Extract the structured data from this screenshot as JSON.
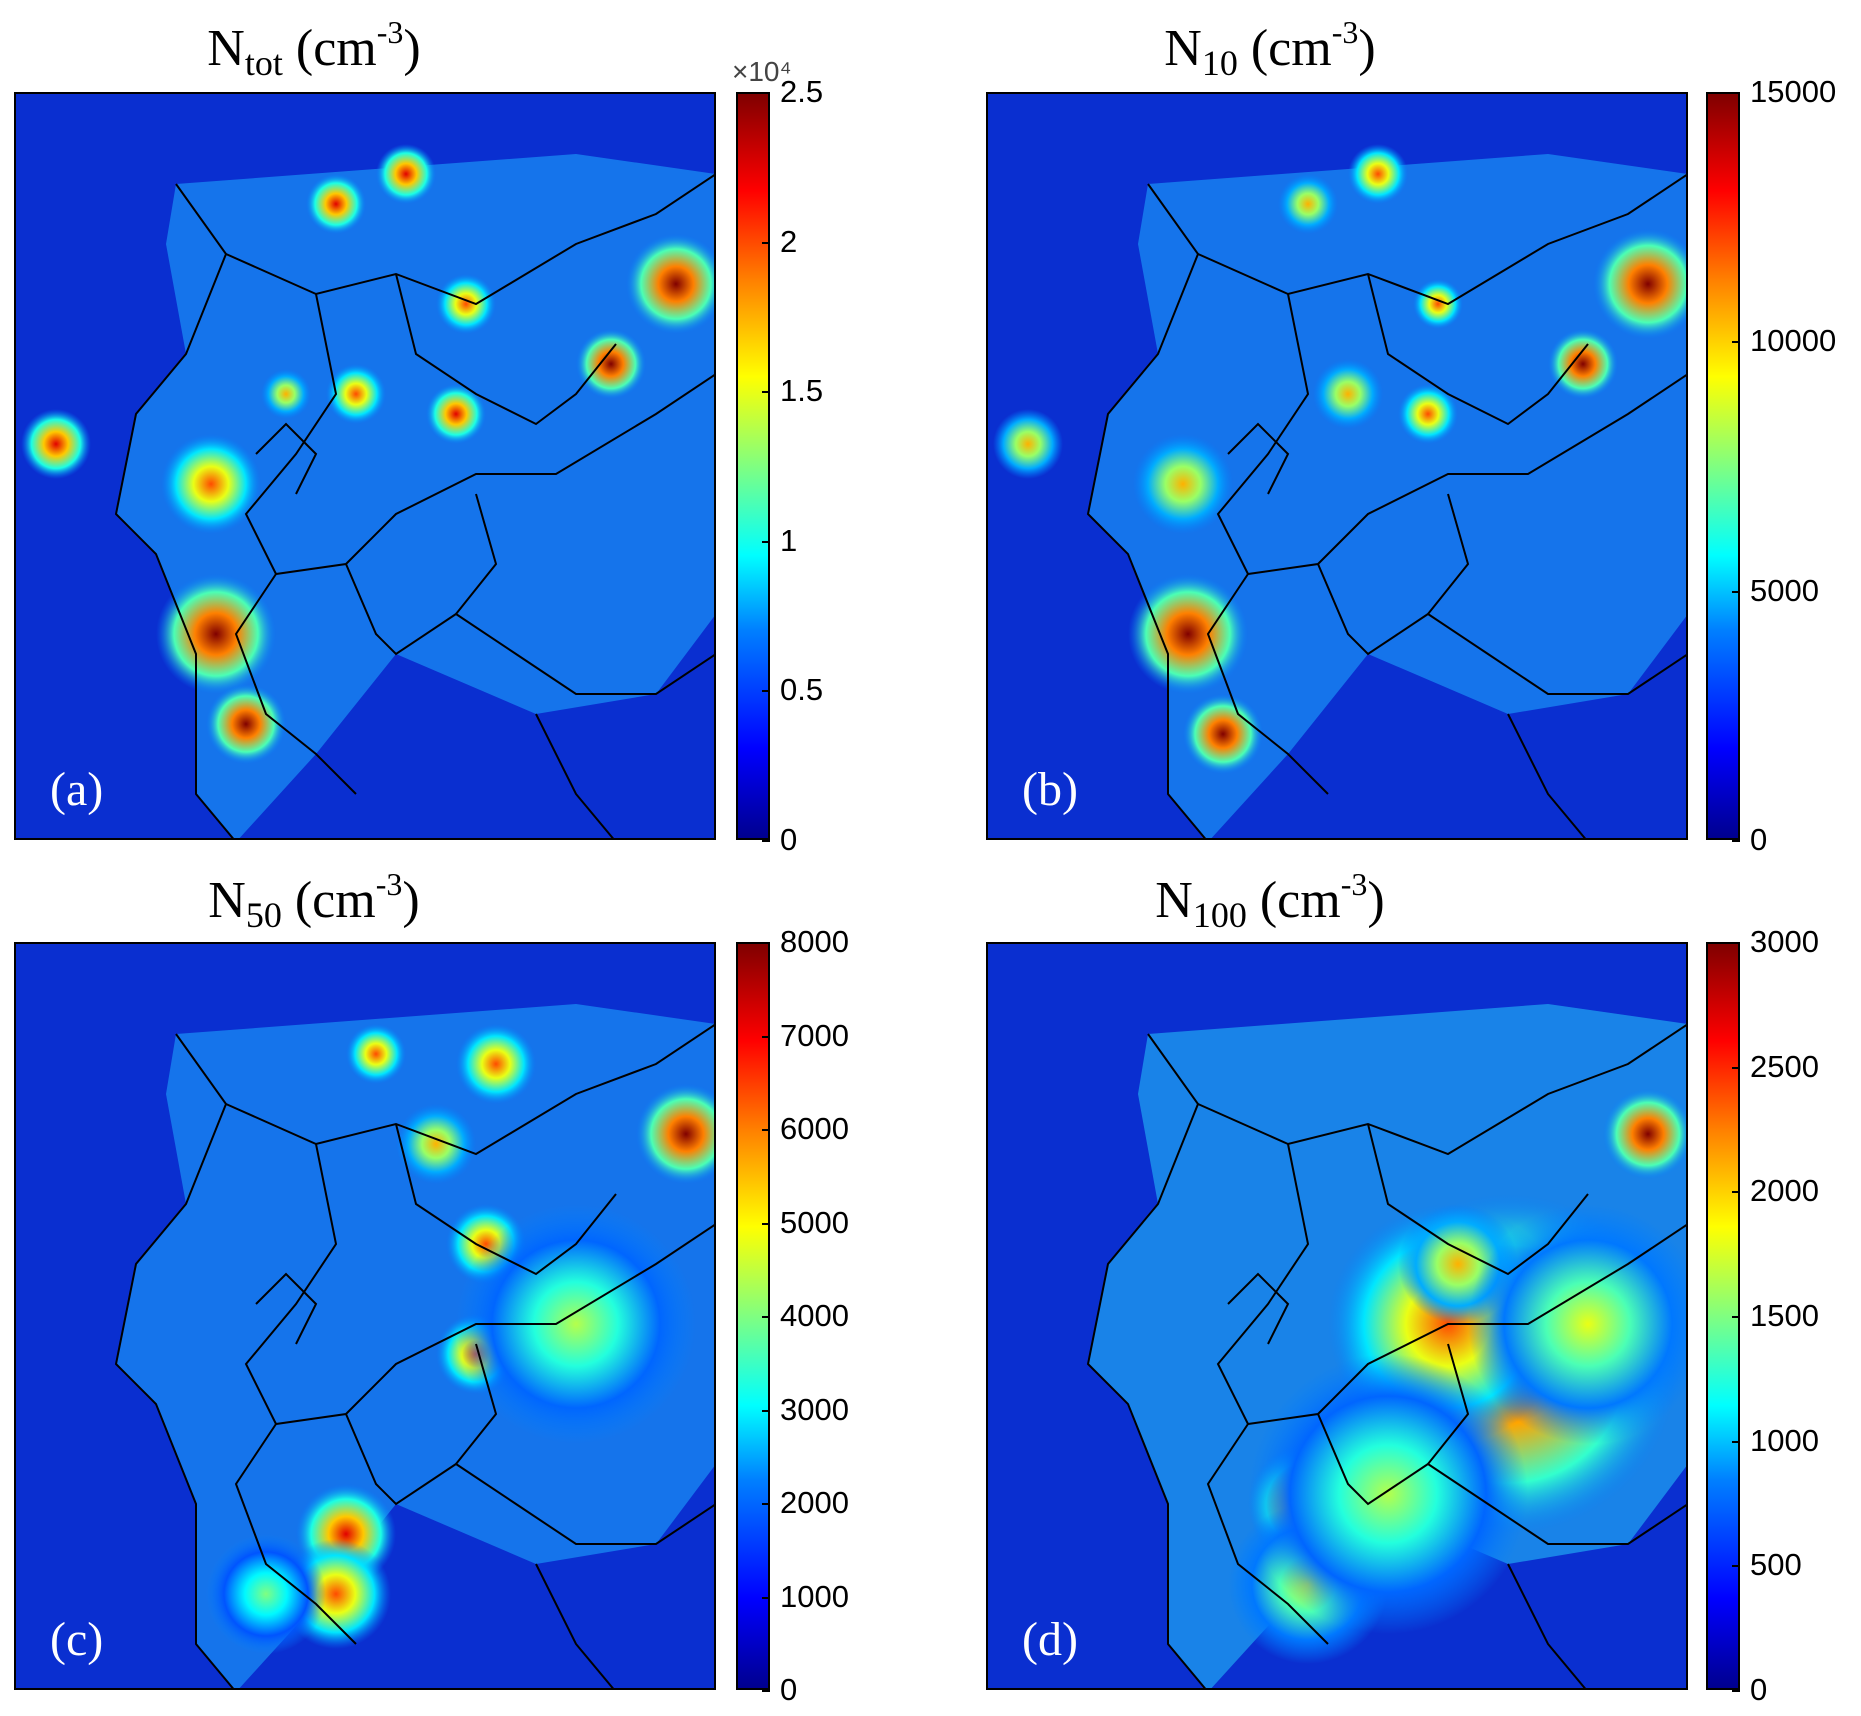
{
  "chart_data": [
    {
      "type": "heatmap",
      "label": "(a)",
      "title_main": "N",
      "title_sub": "tot",
      "title_unit_pre": " (cm",
      "title_unit_sup": "-3",
      "title_unit_post": ")",
      "colorbar": {
        "min": 0,
        "max": 25000,
        "ticks": [
          "0",
          "0.5",
          "1",
          "1.5",
          "2",
          "2.5"
        ],
        "tick_values": [
          0,
          0.5,
          1,
          1.5,
          2,
          2.5
        ],
        "scale_label": "×10⁴"
      },
      "colormap": "jet"
    },
    {
      "type": "heatmap",
      "label": "(b)",
      "title_main": "N",
      "title_sub": "10",
      "title_unit_pre": " (cm",
      "title_unit_sup": "-3",
      "title_unit_post": ")",
      "colorbar": {
        "min": 0,
        "max": 15000,
        "ticks": [
          "0",
          "5000",
          "10000",
          "15000"
        ],
        "tick_values": [
          0,
          5000,
          10000,
          15000
        ]
      },
      "colormap": "jet"
    },
    {
      "type": "heatmap",
      "label": "(c)",
      "title_main": "N",
      "title_sub": "50",
      "title_unit_pre": " (cm",
      "title_unit_sup": "-3",
      "title_unit_post": ")",
      "colorbar": {
        "min": 0,
        "max": 8000,
        "ticks": [
          "0",
          "1000",
          "2000",
          "3000",
          "4000",
          "5000",
          "6000",
          "7000",
          "8000"
        ],
        "tick_values": [
          0,
          1000,
          2000,
          3000,
          4000,
          5000,
          6000,
          7000,
          8000
        ]
      },
      "colormap": "jet"
    },
    {
      "type": "heatmap",
      "label": "(d)",
      "title_main": "N",
      "title_sub": "100",
      "title_unit_pre": " (cm",
      "title_unit_sup": "-3",
      "title_unit_post": ")",
      "colorbar": {
        "min": 0,
        "max": 3000,
        "ticks": [
          "0",
          "500",
          "1000",
          "1500",
          "2000",
          "2500",
          "3000"
        ],
        "tick_values": [
          0,
          500,
          1000,
          1500,
          2000,
          2500,
          3000
        ]
      },
      "colormap": "jet"
    }
  ]
}
